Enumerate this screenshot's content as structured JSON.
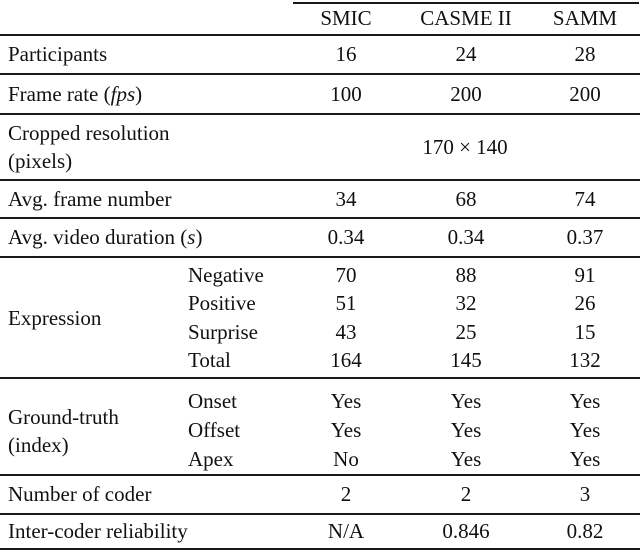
{
  "table": {
    "columns": [
      "SMIC",
      "CASME II",
      "SAMM"
    ],
    "rows": {
      "participants": {
        "label": "Participants",
        "values": [
          "16",
          "24",
          "28"
        ]
      },
      "frame_rate": {
        "label_prefix": "Frame rate (",
        "label_italic": "fps",
        "label_suffix": ")",
        "values": [
          "100",
          "200",
          "200"
        ]
      },
      "cropped_resolution": {
        "label_line1": "Cropped resolution",
        "label_line2": "(pixels)",
        "merged_value": "170 × 140"
      },
      "avg_frame_number": {
        "label": "Avg. frame number",
        "values": [
          "34",
          "68",
          "74"
        ]
      },
      "avg_video_duration": {
        "label_prefix": "Avg. video duration (",
        "label_italic": "s",
        "label_suffix": ")",
        "values": [
          "0.34",
          "0.34",
          "0.37"
        ]
      },
      "expression": {
        "label": "Expression",
        "subrows": [
          {
            "label": "Negative",
            "values": [
              "70",
              "88",
              "91"
            ]
          },
          {
            "label": "Positive",
            "values": [
              "51",
              "32",
              "26"
            ]
          },
          {
            "label": "Surprise",
            "values": [
              "43",
              "25",
              "15"
            ]
          },
          {
            "label": "Total",
            "values": [
              "164",
              "145",
              "132"
            ]
          }
        ]
      },
      "ground_truth": {
        "label_line1": "Ground-truth",
        "label_line2": "(index)",
        "subrows": [
          {
            "label": "Onset",
            "values": [
              "Yes",
              "Yes",
              "Yes"
            ]
          },
          {
            "label": "Offset",
            "values": [
              "Yes",
              "Yes",
              "Yes"
            ]
          },
          {
            "label": "Apex",
            "values": [
              "No",
              "Yes",
              "Yes"
            ]
          }
        ]
      },
      "number_of_coder": {
        "label": "Number of coder",
        "values": [
          "2",
          "2",
          "3"
        ]
      },
      "inter_coder_reliability": {
        "label": "Inter-coder reliability",
        "values": [
          "N/A",
          "0.846",
          "0.82"
        ]
      }
    }
  }
}
